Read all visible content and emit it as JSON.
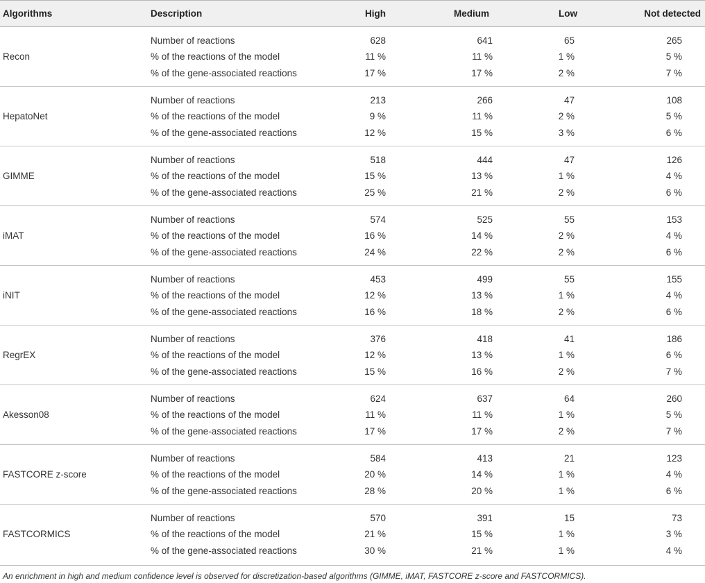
{
  "headers": {
    "algorithms": "Algorithms",
    "description": "Description",
    "high": "High",
    "medium": "Medium",
    "low": "Low",
    "not_detected": "Not detected"
  },
  "groups": [
    {
      "name": "Recon",
      "rows": [
        {
          "desc": "Number of reactions",
          "high": "628",
          "medium": "641",
          "low": "65",
          "nd": "265"
        },
        {
          "desc": "% of the reactions of the model",
          "high": "11 %",
          "medium": "11 %",
          "low": "1 %",
          "nd": "5 %"
        },
        {
          "desc": "% of the gene-associated reactions",
          "high": "17 %",
          "medium": "17 %",
          "low": "2 %",
          "nd": "7 %"
        }
      ]
    },
    {
      "name": "HepatoNet",
      "rows": [
        {
          "desc": "Number of reactions",
          "high": "213",
          "medium": "266",
          "low": "47",
          "nd": "108"
        },
        {
          "desc": "% of the reactions of the model",
          "high": "9 %",
          "medium": "11 %",
          "low": "2 %",
          "nd": "5 %"
        },
        {
          "desc": "% of the gene-associated reactions",
          "high": "12 %",
          "medium": "15 %",
          "low": "3 %",
          "nd": "6 %"
        }
      ]
    },
    {
      "name": "GIMME",
      "rows": [
        {
          "desc": "Number of reactions",
          "high": "518",
          "medium": "444",
          "low": "47",
          "nd": "126"
        },
        {
          "desc": "% of the reactions of the model",
          "high": "15 %",
          "medium": "13 %",
          "low": "1 %",
          "nd": "4 %"
        },
        {
          "desc": "% of the gene-associated reactions",
          "high": "25 %",
          "medium": "21 %",
          "low": "2 %",
          "nd": "6 %"
        }
      ]
    },
    {
      "name": "iMAT",
      "rows": [
        {
          "desc": "Number of reactions",
          "high": "574",
          "medium": "525",
          "low": "55",
          "nd": "153"
        },
        {
          "desc": "% of the reactions of the model",
          "high": "16 %",
          "medium": "14 %",
          "low": "2 %",
          "nd": "4 %"
        },
        {
          "desc": "% of the gene-associated reactions",
          "high": "24 %",
          "medium": "22 %",
          "low": "2 %",
          "nd": "6 %"
        }
      ]
    },
    {
      "name": "iNIT",
      "rows": [
        {
          "desc": "Number of reactions",
          "high": "453",
          "medium": "499",
          "low": "55",
          "nd": "155"
        },
        {
          "desc": "% of the reactions of the model",
          "high": "12 %",
          "medium": "13 %",
          "low": "1 %",
          "nd": "4 %"
        },
        {
          "desc": "% of the gene-associated reactions",
          "high": "16 %",
          "medium": "18 %",
          "low": "2 %",
          "nd": "6 %"
        }
      ]
    },
    {
      "name": "RegrEX",
      "rows": [
        {
          "desc": "Number of reactions",
          "high": "376",
          "medium": "418",
          "low": "41",
          "nd": "186"
        },
        {
          "desc": "% of the reactions of the model",
          "high": "12 %",
          "medium": "13 %",
          "low": "1 %",
          "nd": "6 %"
        },
        {
          "desc": "% of the gene-associated reactions",
          "high": "15 %",
          "medium": "16 %",
          "low": "2 %",
          "nd": "7 %"
        }
      ]
    },
    {
      "name": "Akesson08",
      "rows": [
        {
          "desc": "Number of reactions",
          "high": "624",
          "medium": "637",
          "low": "64",
          "nd": "260"
        },
        {
          "desc": "% of the reactions of the model",
          "high": "11 %",
          "medium": "11 %",
          "low": "1 %",
          "nd": "5 %"
        },
        {
          "desc": "% of the gene-associated reactions",
          "high": "17 %",
          "medium": "17 %",
          "low": "2 %",
          "nd": "7 %"
        }
      ]
    },
    {
      "name": "FASTCORE z-score",
      "rows": [
        {
          "desc": "Number of reactions",
          "high": "584",
          "medium": "413",
          "low": "21",
          "nd": "123"
        },
        {
          "desc": "% of the reactions of the model",
          "high": "20 %",
          "medium": "14 %",
          "low": "1 %",
          "nd": "4 %"
        },
        {
          "desc": "% of the gene-associated reactions",
          "high": "28 %",
          "medium": "20 %",
          "low": "1 %",
          "nd": "6 %"
        }
      ]
    },
    {
      "name": "FASTCORMICS",
      "rows": [
        {
          "desc": "Number of reactions",
          "high": "570",
          "medium": "391",
          "low": "15",
          "nd": "73"
        },
        {
          "desc": "% of the reactions of the model",
          "high": "21 %",
          "medium": "15 %",
          "low": "1 %",
          "nd": "3 %"
        },
        {
          "desc": "% of the gene-associated reactions",
          "high": "30 %",
          "medium": "21 %",
          "low": "1 %",
          "nd": "4 %"
        }
      ]
    }
  ],
  "footnote": "An enrichment in high and medium confidence level is observed for discretization-based algorithms (GIMME, iMAT, FASTCORE z-score and FASTCORMICS)."
}
